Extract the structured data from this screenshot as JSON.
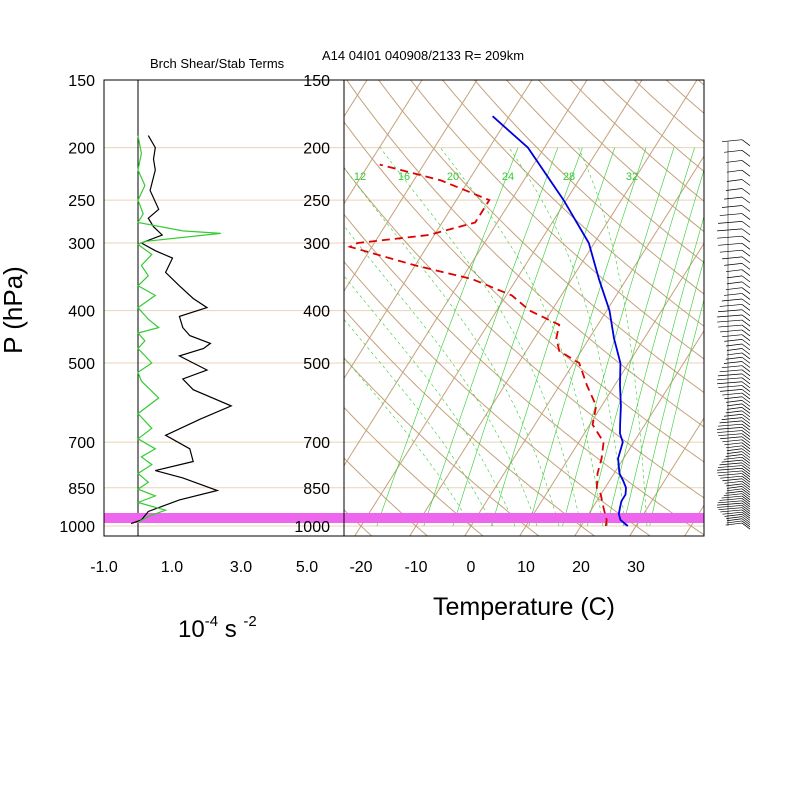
{
  "header": {
    "left_title": "Brch Shear/Stab Terms",
    "right_title": "A14 04I01 040908/2133 R= 209km"
  },
  "axes": {
    "pressure_label": "P (hPa)",
    "temperature_label": "Temperature (C)",
    "shear_unit_base": "10",
    "shear_unit_exp1": "-4",
    "shear_unit_mid": " s ",
    "shear_unit_exp2": "-2"
  },
  "pressure_ticks": [
    "150",
    "200",
    "250",
    "300",
    "400",
    "500",
    "700",
    "850",
    "1000"
  ],
  "shear_ticks": [
    "-1.0",
    "1.0",
    "3.0",
    "5.0"
  ],
  "temp_ticks": [
    "-20",
    "-10",
    "0",
    "10",
    "20",
    "30"
  ],
  "mixing_ratio_labels": [
    "12",
    "16",
    "20",
    "24",
    "28",
    "32"
  ],
  "colors": {
    "isobar": "#e8d3b8",
    "skew_lines": "#c4a27c",
    "mixing_ratio": "#33cc33",
    "temperature": "#0000dd",
    "dewpoint": "#dd0000",
    "shear_black": "#000000",
    "stab_green": "#33cc33",
    "surface_band": "#ee66ee"
  },
  "chart_data": [
    {
      "type": "line",
      "title": "Brch Shear/Stab Terms",
      "xlabel": "10-4 s -2",
      "ylabel": "P (hPa)",
      "xlim": [
        -1.0,
        5.0
      ],
      "ylim": [
        1000,
        150
      ],
      "y_scale": "log",
      "series": [
        {
          "color": "#000000",
          "points": [
            [
              0.3,
              190
            ],
            [
              0.5,
              200
            ],
            [
              0.45,
              210
            ],
            [
              0.5,
              220
            ],
            [
              0.35,
              240
            ],
            [
              0.6,
              260
            ],
            [
              0.3,
              270
            ],
            [
              0.45,
              280
            ],
            [
              0.7,
              290
            ],
            [
              0.1,
              300
            ],
            [
              0.5,
              310
            ],
            [
              1.0,
              320
            ],
            [
              0.8,
              340
            ],
            [
              1.2,
              360
            ],
            [
              1.6,
              380
            ],
            [
              2.0,
              395
            ],
            [
              1.2,
              410
            ],
            [
              1.3,
              430
            ],
            [
              1.5,
              445
            ],
            [
              2.1,
              460
            ],
            [
              1.9,
              470
            ],
            [
              1.2,
              485
            ],
            [
              1.6,
              500
            ],
            [
              2.0,
              515
            ],
            [
              1.3,
              535
            ],
            [
              1.6,
              560
            ],
            [
              2.7,
              600
            ],
            [
              1.8,
              635
            ],
            [
              0.8,
              680
            ],
            [
              1.5,
              720
            ],
            [
              1.6,
              760
            ],
            [
              0.5,
              790
            ],
            [
              1.3,
              815
            ],
            [
              2.3,
              860
            ],
            [
              1.2,
              895
            ],
            [
              0.3,
              940
            ],
            [
              0.1,
              975
            ],
            [
              -0.2,
              990
            ]
          ]
        },
        {
          "color": "#33cc33",
          "points": [
            [
              0.0,
              190
            ],
            [
              0.1,
              205
            ],
            [
              0.0,
              220
            ],
            [
              0.2,
              235
            ],
            [
              0.0,
              250
            ],
            [
              0.15,
              265
            ],
            [
              0.0,
              275
            ],
            [
              1.3,
              285
            ],
            [
              2.4,
              288
            ],
            [
              0.2,
              298
            ],
            [
              0.0,
              302
            ],
            [
              0.4,
              315
            ],
            [
              0.1,
              330
            ],
            [
              0.3,
              345
            ],
            [
              0.0,
              360
            ],
            [
              0.5,
              375
            ],
            [
              0.0,
              395
            ],
            [
              0.3,
              415
            ],
            [
              0.6,
              430
            ],
            [
              0.0,
              440
            ],
            [
              0.2,
              455
            ],
            [
              0.0,
              470
            ],
            [
              0.4,
              500
            ],
            [
              0.0,
              520
            ],
            [
              0.1,
              540
            ],
            [
              0.6,
              580
            ],
            [
              0.0,
              620
            ],
            [
              0.4,
              660
            ],
            [
              0.0,
              690
            ],
            [
              0.5,
              720
            ],
            [
              0.1,
              745
            ],
            [
              0.4,
              770
            ],
            [
              0.0,
              800
            ],
            [
              0.3,
              830
            ],
            [
              0.0,
              855
            ],
            [
              0.5,
              880
            ],
            [
              0.0,
              905
            ],
            [
              0.8,
              935
            ],
            [
              0.3,
              960
            ],
            [
              0.0,
              985
            ]
          ]
        }
      ]
    },
    {
      "type": "line",
      "title": "A14 04I01 040908/2133 R= 209km",
      "xlabel": "Temperature (C)",
      "ylabel": "P (hPa)",
      "xlim": [
        -20,
        40
      ],
      "ylim": [
        1000,
        150
      ],
      "y_scale": "log",
      "skew": true,
      "series": [
        {
          "color": "#0000dd",
          "style": "solid",
          "points": [
            [
              28.5,
              1000
            ],
            [
              26.5,
              975
            ],
            [
              25.5,
              950
            ],
            [
              25.0,
              925
            ],
            [
              24.5,
              900
            ],
            [
              24.5,
              875
            ],
            [
              23.8,
              850
            ],
            [
              22.5,
              825
            ],
            [
              21.0,
              800
            ],
            [
              19.0,
              750
            ],
            [
              18.0,
              700
            ],
            [
              16.5,
              675
            ],
            [
              15.5,
              650
            ],
            [
              13.5,
              600
            ],
            [
              11.0,
              550
            ],
            [
              8.5,
              500
            ],
            [
              4.5,
              450
            ],
            [
              0.5,
              400
            ],
            [
              -5.0,
              350
            ],
            [
              -11.0,
              300
            ],
            [
              -20.5,
              250
            ],
            [
              -33.0,
              200
            ],
            [
              -43.0,
              175
            ]
          ]
        },
        {
          "color": "#dd0000",
          "style": "dashed",
          "points": [
            [
              24.5,
              1000
            ],
            [
              24.0,
              975
            ],
            [
              23.0,
              950
            ],
            [
              22.0,
              925
            ],
            [
              21.0,
              900
            ],
            [
              20.0,
              875
            ],
            [
              18.5,
              850
            ],
            [
              17.0,
              800
            ],
            [
              16.0,
              750
            ],
            [
              14.5,
              700
            ],
            [
              10.5,
              650
            ],
            [
              9.0,
              600
            ],
            [
              5.0,
              550
            ],
            [
              1.0,
              500
            ],
            [
              -4.0,
              475
            ],
            [
              -6.0,
              450
            ],
            [
              -7.0,
              425
            ],
            [
              -14.0,
              400
            ],
            [
              -19.0,
              375
            ],
            [
              -28.0,
              350
            ],
            [
              -40.0,
              330
            ],
            [
              -54.0,
              305
            ],
            [
              -53.0,
              300
            ],
            [
              -41.0,
              290
            ],
            [
              -34.0,
              275
            ],
            [
              -34.0,
              250
            ],
            [
              -45.0,
              230
            ],
            [
              -58.0,
              215
            ]
          ]
        }
      ]
    }
  ]
}
